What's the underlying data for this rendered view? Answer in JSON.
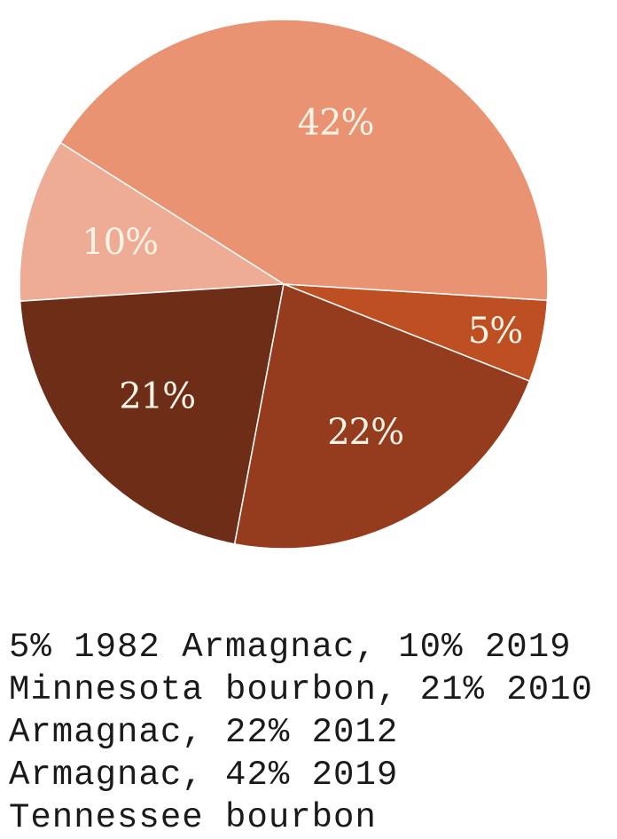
{
  "chart_data": {
    "type": "pie",
    "slices": [
      {
        "label": "5%",
        "value": 5,
        "color": "#bd4f23"
      },
      {
        "label": "42%",
        "value": 42,
        "color": "#ea9373"
      },
      {
        "label": "10%",
        "value": 10,
        "color": "#eeac94"
      },
      {
        "label": "21%",
        "value": 21,
        "color": "#6e2d17"
      },
      {
        "label": "22%",
        "value": 22,
        "color": "#943c1d"
      }
    ]
  },
  "caption": "5% 1982 Armagnac, 10% 2019 Minnesota bourbon, 21% 2010 Armagnac, 22% 2012 Armagnac, 42% 2019 Tennessee bourbon"
}
